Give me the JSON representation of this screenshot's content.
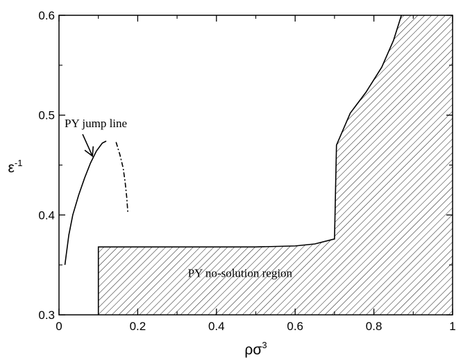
{
  "chart_data": {
    "type": "line",
    "xlabel": "ρσ",
    "xlabel_sup": "3",
    "ylabel": "ε",
    "ylabel_sup": "-1",
    "xlim": [
      0,
      1
    ],
    "ylim": [
      0.3,
      0.6
    ],
    "grid": false,
    "x_ticks": [
      {
        "value": 0,
        "label": "0"
      },
      {
        "value": 0.2,
        "label": "0.2"
      },
      {
        "value": 0.4,
        "label": "0.4"
      },
      {
        "value": 0.6,
        "label": "0.6"
      },
      {
        "value": 0.8,
        "label": "0.8"
      },
      {
        "value": 1,
        "label": "1"
      }
    ],
    "y_ticks": [
      {
        "value": 0.3,
        "label": "0.3"
      },
      {
        "value": 0.4,
        "label": "0.4"
      },
      {
        "value": 0.5,
        "label": "0.5"
      },
      {
        "value": 0.6,
        "label": "0.6"
      }
    ],
    "series": [
      {
        "style": "solid",
        "points": [
          [
            0.015,
            0.35
          ],
          [
            0.025,
            0.38
          ],
          [
            0.035,
            0.4
          ],
          [
            0.05,
            0.42
          ],
          [
            0.065,
            0.437
          ],
          [
            0.08,
            0.452
          ],
          [
            0.095,
            0.464
          ],
          [
            0.11,
            0.472
          ],
          [
            0.12,
            0.474
          ]
        ]
      },
      {
        "style": "dashdot",
        "points": [
          [
            0.145,
            0.473
          ],
          [
            0.155,
            0.46
          ],
          [
            0.163,
            0.447
          ],
          [
            0.168,
            0.433
          ],
          [
            0.172,
            0.418
          ],
          [
            0.175,
            0.402
          ]
        ]
      }
    ],
    "region": {
      "label": "PY no-solution region",
      "fill": "hatched",
      "boundary": [
        [
          0.1,
          0.368
        ],
        [
          0.3,
          0.368
        ],
        [
          0.5,
          0.368
        ],
        [
          0.6,
          0.369
        ],
        [
          0.65,
          0.371
        ],
        [
          0.7,
          0.376
        ],
        [
          0.705,
          0.47
        ],
        [
          0.74,
          0.502
        ],
        [
          0.78,
          0.523
        ],
        [
          0.82,
          0.548
        ],
        [
          0.85,
          0.575
        ],
        [
          0.87,
          0.6
        ]
      ]
    },
    "annotations": [
      {
        "text": "PY jump line",
        "x": 0.12,
        "y": 0.492,
        "arrow_to": [
          0.085,
          0.459
        ]
      }
    ]
  }
}
